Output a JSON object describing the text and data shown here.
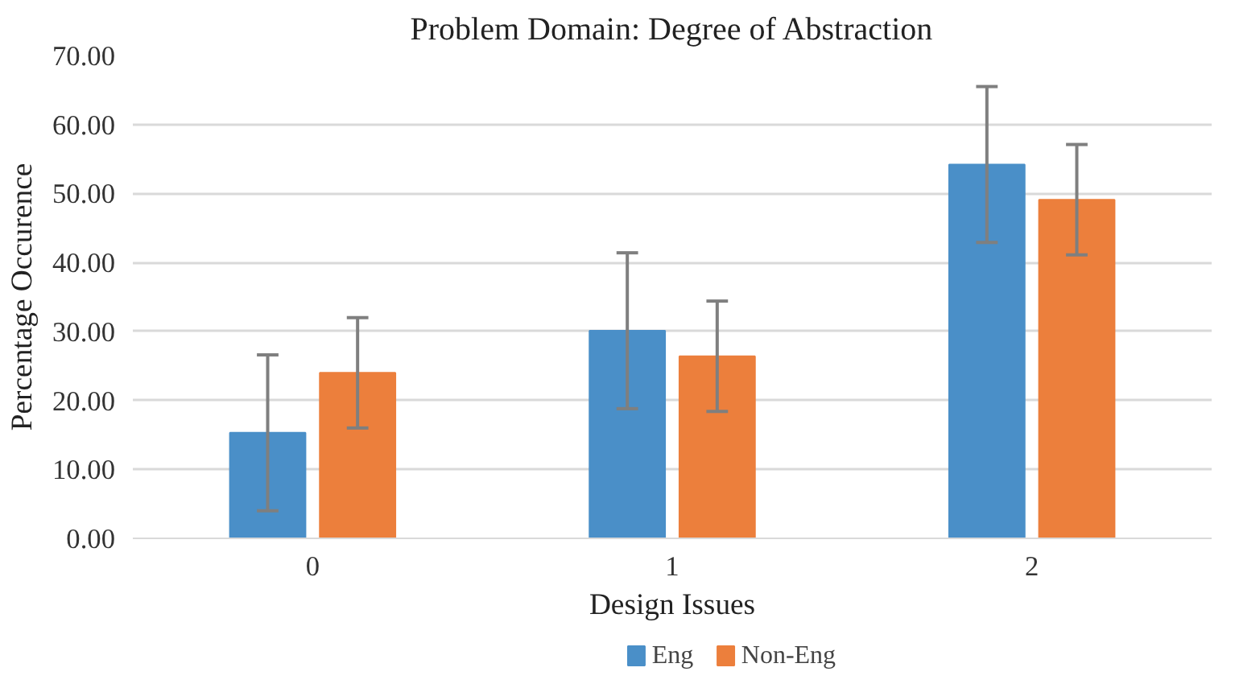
{
  "chart_data": {
    "type": "bar",
    "title": "Problem Domain: Degree of Abstraction",
    "xlabel": "Design Issues",
    "ylabel": "Percentage Occurence",
    "categories": [
      "0",
      "1",
      "2"
    ],
    "series": [
      {
        "name": "Eng",
        "color": "#4a8fc8",
        "values": [
          15.3,
          30.1,
          54.2
        ],
        "errors": [
          11.3,
          11.3,
          11.3
        ]
      },
      {
        "name": "Non-Eng",
        "color": "#ec7f3c",
        "values": [
          24.0,
          26.4,
          49.1
        ],
        "errors": [
          8,
          8,
          8
        ]
      }
    ],
    "ylim": [
      0,
      70
    ],
    "yticks": [
      {
        "value": 0,
        "label": "0.00"
      },
      {
        "value": 10,
        "label": "10.00"
      },
      {
        "value": 20,
        "label": "20.00"
      },
      {
        "value": 30,
        "label": "30.00"
      },
      {
        "value": 40,
        "label": "40.00"
      },
      {
        "value": 50,
        "label": "50.00"
      },
      {
        "value": 60,
        "label": "60.00"
      },
      {
        "value": 70,
        "label": "70.00"
      }
    ],
    "grid": "y",
    "legend": "bottom"
  }
}
